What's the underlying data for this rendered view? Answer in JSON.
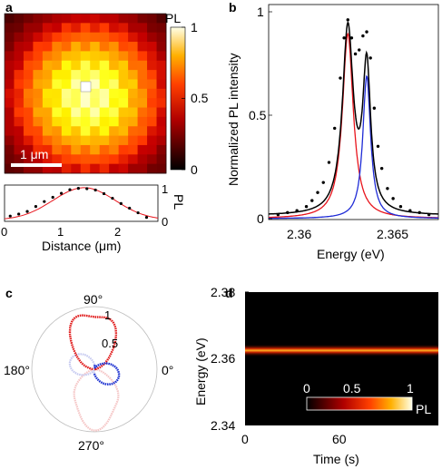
{
  "panels": {
    "a": {
      "label": "a",
      "colorbar": {
        "title": "PL",
        "ticks": [
          "1",
          "0.5",
          "0"
        ]
      },
      "scalebar": "1 μm",
      "profile": {
        "ylabel": "PL",
        "xlabel": "Distance (μm)",
        "xticks": [
          "0",
          "1",
          "2"
        ],
        "yticks": [
          "1",
          "0"
        ]
      }
    },
    "b": {
      "label": "b",
      "ylabel": "Normalized PL intensity",
      "xlabel": "Energy (eV)",
      "xticks": [
        "2.36",
        "2.365"
      ],
      "yticks": [
        "1",
        "0.5",
        "0"
      ]
    },
    "c": {
      "label": "c",
      "angle_labels": [
        "90°",
        "180°",
        "0°",
        "270°"
      ],
      "radial_labels": [
        "1",
        "0.5"
      ]
    },
    "d": {
      "label": "d",
      "ylabel": "Energy (eV)",
      "xlabel": "Time (s)",
      "yticks": [
        "2.38",
        "2.36",
        "2.34"
      ],
      "xticks": [
        "0",
        "60"
      ],
      "colorbar": {
        "ticks": [
          "0",
          "0.5",
          "1"
        ],
        "title": "PL"
      }
    }
  },
  "colors": {
    "fit_total": "#000000",
    "fit_red": "#e8141c",
    "fit_blue": "#1f2bd6",
    "polar_red": "#e01a1a",
    "polar_blue": "#1a2fd0",
    "polar_red_faint": "#f5c6c6",
    "polar_blue_faint": "#c6caf0"
  },
  "chart_data": [
    {
      "id": "a-map",
      "type": "heatmap",
      "x": [
        0,
        0.28,
        0.56,
        0.83,
        1.11,
        1.39,
        1.67,
        1.94,
        2.22,
        2.5
      ],
      "center": [
        1.4,
        1.4
      ],
      "sigma_um": 0.75,
      "zlim": [
        0,
        1
      ]
    },
    {
      "id": "a-profile",
      "type": "scatter",
      "x": [
        0.1,
        0.25,
        0.4,
        0.55,
        0.7,
        0.85,
        1.0,
        1.15,
        1.3,
        1.45,
        1.6,
        1.75,
        1.9,
        2.05,
        2.2,
        2.35,
        2.5
      ],
      "y": [
        0.16,
        0.22,
        0.3,
        0.45,
        0.6,
        0.73,
        0.85,
        0.96,
        1.0,
        0.99,
        0.95,
        0.84,
        0.7,
        0.54,
        0.4,
        0.26,
        0.12
      ],
      "xlim": [
        0,
        2.7
      ],
      "ylim": [
        0,
        1.1
      ]
    },
    {
      "id": "b-spectrum",
      "type": "line",
      "xlim": [
        2.358,
        2.367
      ],
      "ylim": [
        0,
        1.03
      ],
      "x": [
        2.3585,
        2.359,
        2.3595,
        2.36,
        2.3603,
        2.3606,
        2.3609,
        2.3612,
        2.3615,
        2.3618,
        2.362,
        2.3622,
        2.3624,
        2.3626,
        2.3628,
        2.363,
        2.3632,
        2.3634,
        2.3636,
        2.3638,
        2.364,
        2.3643,
        2.3646,
        2.365,
        2.3655,
        2.366,
        2.3665
      ],
      "y": [
        0.02,
        0.03,
        0.04,
        0.06,
        0.09,
        0.13,
        0.18,
        0.28,
        0.45,
        0.7,
        0.9,
        0.99,
        0.9,
        0.82,
        0.84,
        0.91,
        0.93,
        0.8,
        0.55,
        0.36,
        0.25,
        0.15,
        0.1,
        0.06,
        0.04,
        0.03,
        0.02
      ],
      "series": [
        {
          "name": "",
          "peak": 2.3622,
          "height": 0.92,
          "hwhm": 0.00035
        },
        {
          "name": "",
          "peak": 2.3632,
          "height": 0.71,
          "hwhm": 0.00025
        }
      ]
    },
    {
      "id": "c-polar",
      "type": "line",
      "rlim": [
        0,
        1.1
      ],
      "angle_ticks_deg": [
        0,
        90,
        180,
        270
      ]
    },
    {
      "id": "d-timetrace",
      "type": "heatmap",
      "xlim": [
        0,
        120
      ],
      "ylim": [
        2.34,
        2.38
      ],
      "line_energy": 2.3625,
      "zlim": [
        0,
        1
      ]
    }
  ]
}
